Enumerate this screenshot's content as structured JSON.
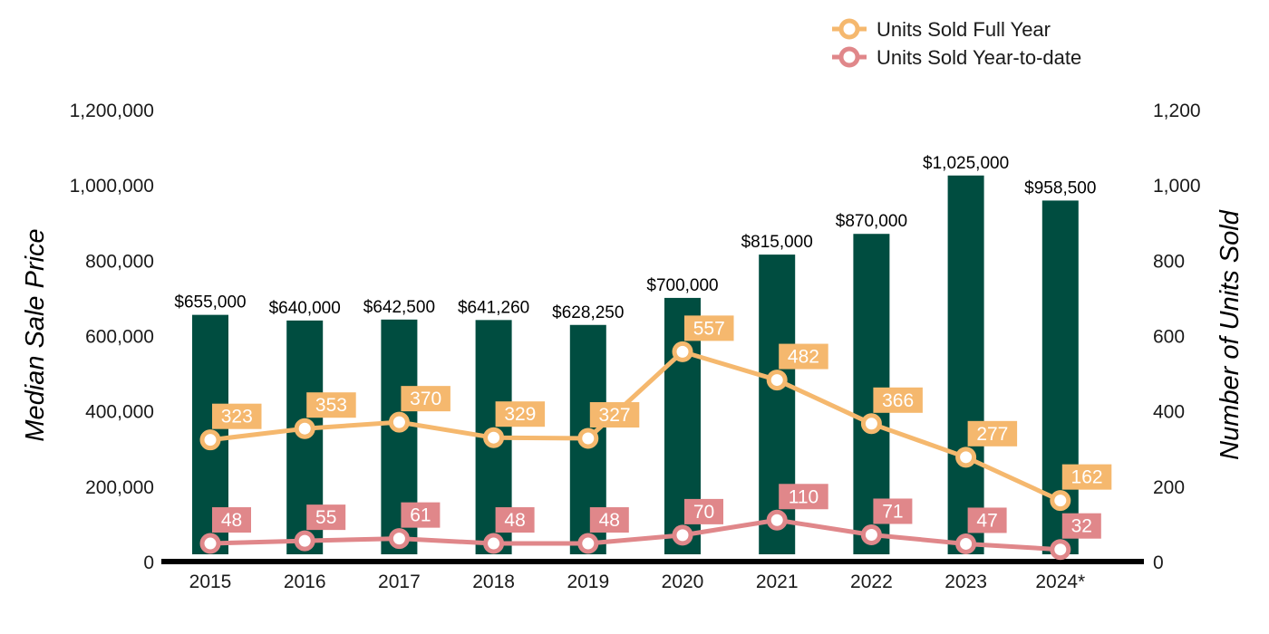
{
  "chart_data": {
    "type": "bar",
    "categories": [
      "2015",
      "2016",
      "2017",
      "2018",
      "2019",
      "2020",
      "2021",
      "2022",
      "2023",
      "2024*"
    ],
    "bar_series": {
      "values": [
        655000,
        640000,
        642500,
        641260,
        628250,
        700000,
        815000,
        870000,
        1025000,
        958500
      ],
      "labels": [
        "$655,000",
        "$640,000",
        "$642,500",
        "$641,260",
        "$628,250",
        "$700,000",
        "$815,000",
        "$870,000",
        "$1,025,000",
        "$958,500"
      ],
      "color": "#004d40",
      "axis": "left"
    },
    "line_series": [
      {
        "name": "Units Sold Full Year",
        "type": "line",
        "axis": "right",
        "color": "#f5b86e",
        "values": [
          323,
          353,
          370,
          329,
          327,
          557,
          482,
          366,
          277,
          162
        ]
      },
      {
        "name": "Units Sold Year-to-date",
        "type": "line",
        "axis": "right",
        "color": "#e0878a",
        "values": [
          48,
          55,
          61,
          48,
          48,
          70,
          110,
          71,
          47,
          32
        ]
      }
    ],
    "ylabel_left": "Median Sale Price",
    "ylabel_right": "Number of Units Sold",
    "ylim_left": [
      0,
      1200000
    ],
    "ylim_right": [
      0,
      1200
    ],
    "yticks_left": [
      "0",
      "200,000",
      "400,000",
      "600,000",
      "800,000",
      "1,000,000",
      "1,200,000"
    ],
    "yticks_right": [
      "0",
      "200",
      "400",
      "600",
      "800",
      "1,000",
      "1,200"
    ],
    "grid": false,
    "legend_position": "top-right"
  }
}
